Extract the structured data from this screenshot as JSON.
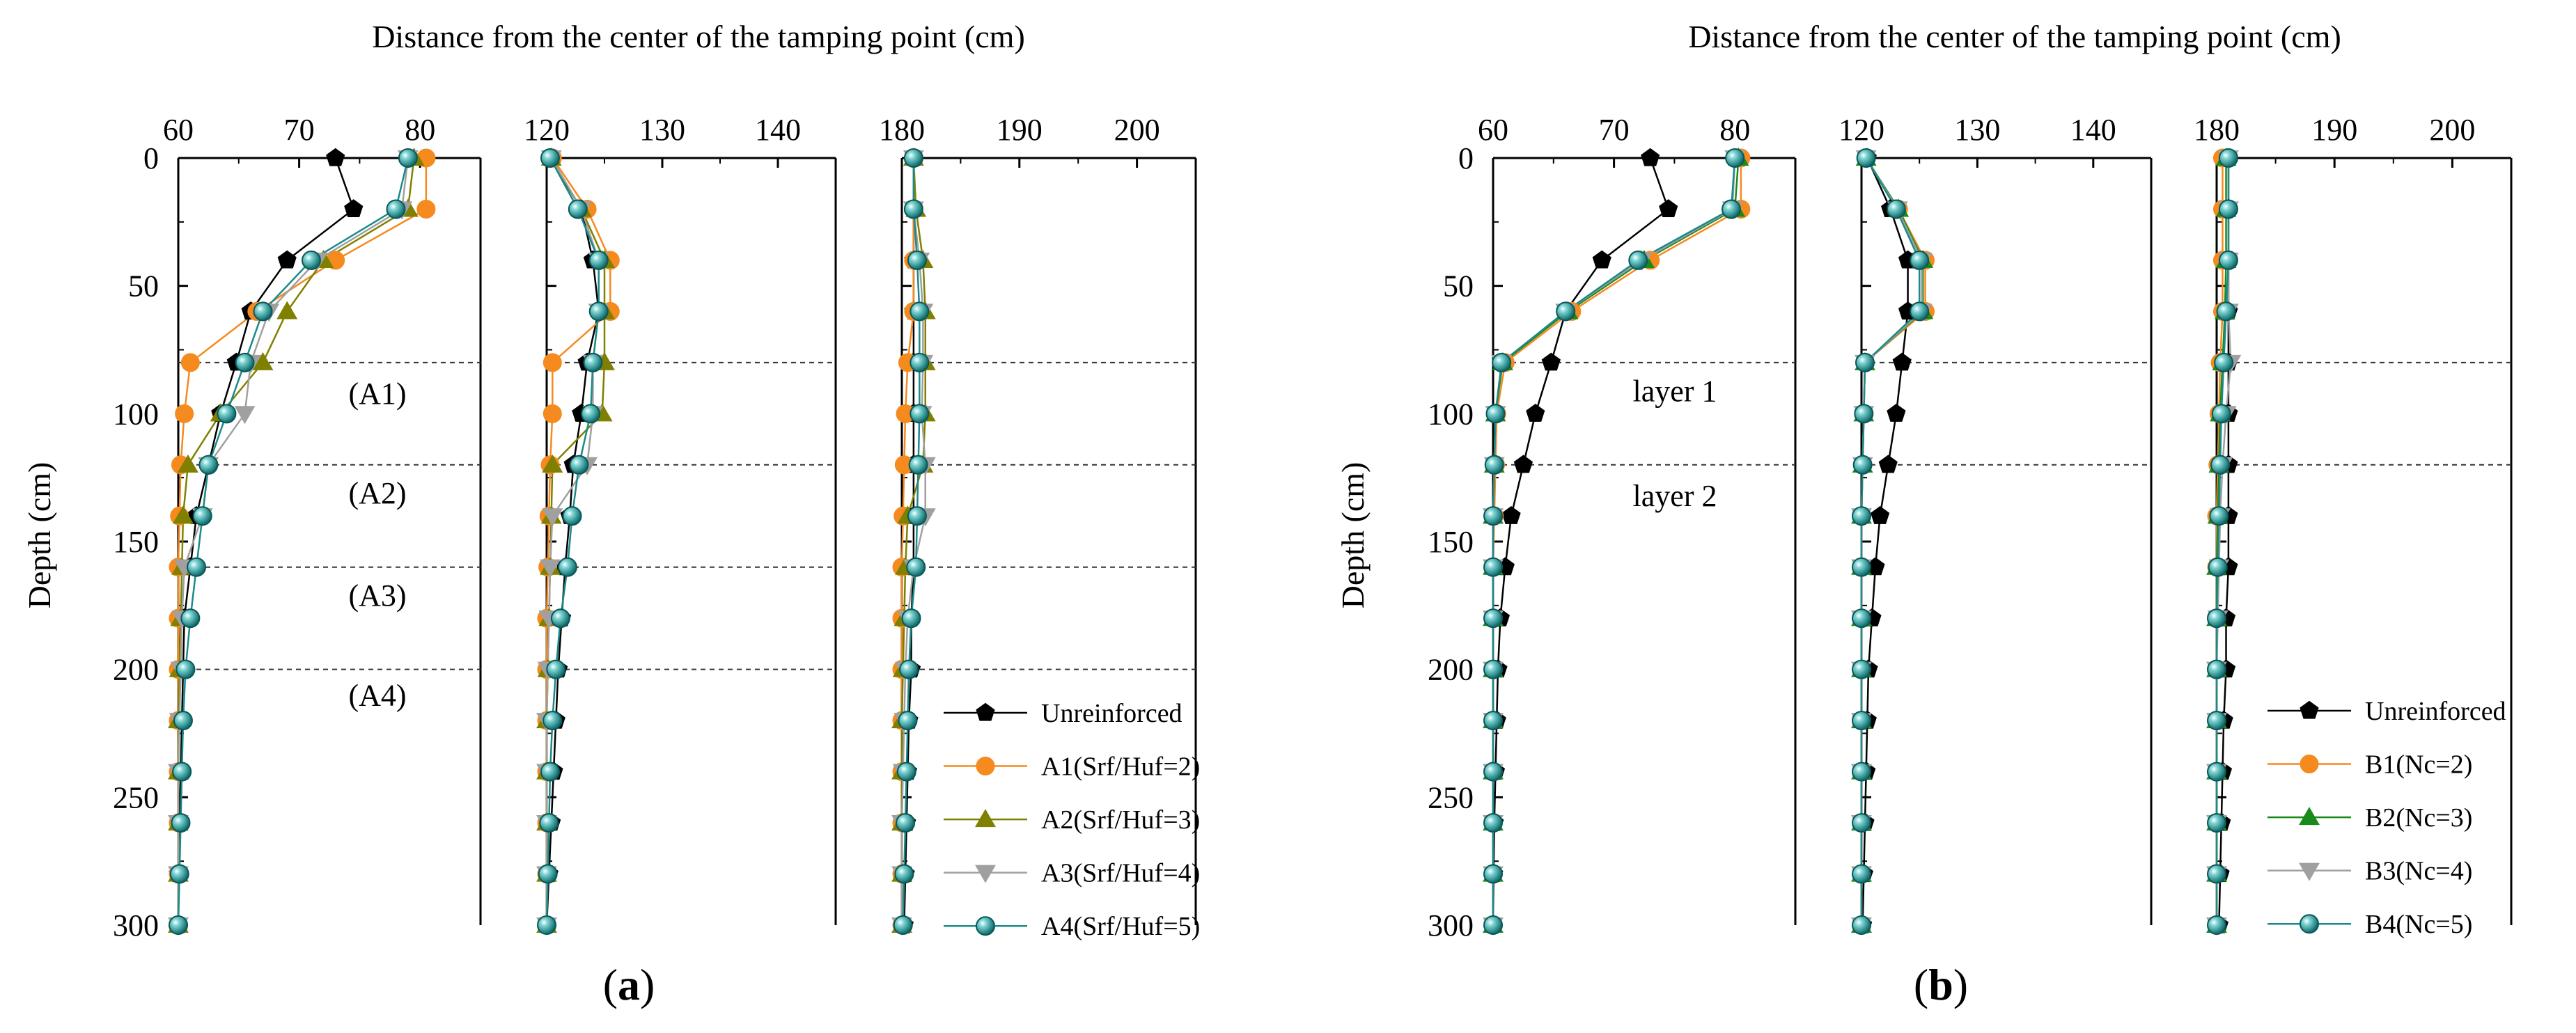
{
  "figure": {
    "panel_labels": [
      "(a)",
      "(b)"
    ],
    "panel_label_parts": [
      {
        "open": "(",
        "letter": "a",
        "close": ")"
      },
      {
        "open": "(",
        "letter": "b",
        "close": ")"
      }
    ]
  },
  "colors": {
    "unreinforced": "#000000",
    "s1": "#f58a1f",
    "s2_a": "#808000",
    "s2_b": "#1a8a1a",
    "s3": "#a0a0a0",
    "s4": "#1a8a8a",
    "axis": "#000000",
    "reference_line": "#333333"
  },
  "chart_data": [
    {
      "type": "line",
      "panel": "a",
      "title": "Distance from the center of the tamping point (cm)",
      "xlabel": "Distance from the center of the tamping point (cm)",
      "ylabel": "Depth (cm)",
      "ylim": [
        0,
        300
      ],
      "y_inverted": true,
      "y_ticks": [
        0,
        50,
        100,
        150,
        200,
        250,
        300
      ],
      "depths": [
        0,
        20,
        40,
        60,
        80,
        100,
        120,
        140,
        160,
        180,
        200,
        220,
        240,
        260,
        280,
        300
      ],
      "reference_depths": [
        80,
        120,
        160,
        200
      ],
      "layer_labels": [
        {
          "text": "(A1)",
          "depth": 92
        },
        {
          "text": "(A2)",
          "depth": 131
        },
        {
          "text": "(A3)",
          "depth": 171
        },
        {
          "text": "(A4)",
          "depth": 210
        }
      ],
      "legend_entries": [
        "Unreinforced",
        "A1(Srf/Huf=2)",
        "A2(Srf/Huf=3)",
        "A3(Srf/Huf=4)",
        "A4(Srf/Huf=5)"
      ],
      "sub_plots": [
        {
          "xlim": [
            60,
            85
          ],
          "x_ticks": [
            60,
            70,
            80
          ],
          "series": [
            {
              "name": "Unreinforced",
              "marker": "pentagon",
              "values": [
                73,
                74.5,
                69,
                66,
                64.8,
                63.5,
                62.5,
                61.5,
                61,
                60.5,
                60.4,
                60.3,
                60.2,
                60.1,
                60,
                60
              ]
            },
            {
              "name": "A1(Srf/Huf=2)",
              "marker": "circle",
              "values": [
                80.5,
                80.5,
                73,
                66.5,
                61,
                60.5,
                60.2,
                60.1,
                60,
                60,
                60,
                60,
                60,
                60,
                60,
                60
              ]
            },
            {
              "name": "A2(Srf/Huf=3)",
              "marker": "triangle-up",
              "values": [
                79.5,
                79,
                72,
                69,
                67,
                63.5,
                60.8,
                60.4,
                60.3,
                60.2,
                60.1,
                60,
                60,
                60,
                60,
                60
              ]
            },
            {
              "name": "A3(Srf/Huf=4)",
              "marker": "triangle-down",
              "values": [
                79,
                78.5,
                71.5,
                67.5,
                66,
                65.5,
                62.5,
                62,
                60.5,
                60.3,
                60.2,
                60.1,
                60,
                60,
                60,
                60
              ]
            },
            {
              "name": "A4(Srf/Huf=5)",
              "marker": "ball",
              "values": [
                79,
                78,
                71,
                67,
                65.5,
                64,
                62.5,
                62,
                61.5,
                61,
                60.6,
                60.4,
                60.3,
                60.2,
                60.1,
                60
              ]
            }
          ]
        },
        {
          "xlim": [
            120,
            145
          ],
          "x_ticks": [
            120,
            130,
            140
          ],
          "series": [
            {
              "name": "Unreinforced",
              "marker": "pentagon",
              "values": [
                120.3,
                123,
                124,
                124.5,
                123.5,
                123,
                122.3,
                122,
                121.6,
                121.3,
                121,
                120.8,
                120.6,
                120.4,
                120.2,
                120
              ]
            },
            {
              "name": "A1(Srf/Huf=2)",
              "marker": "circle",
              "values": [
                120.5,
                123.5,
                125.5,
                125.5,
                120.5,
                120.5,
                120.3,
                120.2,
                120.1,
                120,
                120,
                120,
                120,
                120,
                120,
                120
              ]
            },
            {
              "name": "A2(Srf/Huf=3)",
              "marker": "triangle-up",
              "values": [
                120.4,
                123,
                125,
                125,
                125,
                124.8,
                120.5,
                120.4,
                120.3,
                120.2,
                120.1,
                120,
                120,
                120,
                120,
                120
              ]
            },
            {
              "name": "A3(Srf/Huf=4)",
              "marker": "triangle-down",
              "values": [
                120.4,
                123,
                124.5,
                124.5,
                124,
                124,
                123.5,
                120.5,
                120.3,
                120.2,
                120.1,
                120,
                120,
                120,
                120,
                120
              ]
            },
            {
              "name": "A4(Srf/Huf=5)",
              "marker": "ball",
              "values": [
                120.3,
                122.7,
                124.5,
                124.5,
                124,
                123.8,
                122.8,
                122.2,
                121.8,
                121.2,
                120.8,
                120.5,
                120.3,
                120.2,
                120.1,
                120
              ]
            }
          ]
        },
        {
          "xlim": [
            180,
            205
          ],
          "x_ticks": [
            180,
            190,
            200
          ],
          "series": [
            {
              "name": "Unreinforced",
              "marker": "pentagon",
              "values": [
                181,
                181,
                181,
                181,
                181,
                181,
                181,
                181,
                181,
                180.8,
                180.8,
                180.6,
                180.5,
                180.4,
                180.3,
                180.2
              ]
            },
            {
              "name": "A1(Srf/Huf=2)",
              "marker": "circle",
              "values": [
                181,
                181,
                181,
                181,
                180.5,
                180.3,
                180.2,
                180.1,
                180,
                180,
                180,
                180,
                180,
                180,
                180,
                180
              ]
            },
            {
              "name": "A2(Srf/Huf=3)",
              "marker": "triangle-up",
              "values": [
                181,
                181.2,
                181.8,
                182,
                182,
                182,
                181.8,
                180.5,
                180.3,
                180.2,
                180.1,
                180,
                180,
                180,
                180,
                180
              ]
            },
            {
              "name": "A3(Srf/Huf=4)",
              "marker": "triangle-down",
              "values": [
                181,
                181,
                181.5,
                181.8,
                181.8,
                181.7,
                182,
                182,
                181,
                180.5,
                180.3,
                180.2,
                180.1,
                180,
                180,
                180
              ]
            },
            {
              "name": "A4(Srf/Huf=5)",
              "marker": "ball",
              "values": [
                181,
                181,
                181.3,
                181.5,
                181.5,
                181.5,
                181.4,
                181.3,
                181.2,
                180.8,
                180.6,
                180.5,
                180.4,
                180.3,
                180.2,
                180.1
              ]
            }
          ]
        }
      ]
    },
    {
      "type": "line",
      "panel": "b",
      "title": "Distance from the center of the tamping point (cm)",
      "xlabel": "Distance from the center of the tamping point (cm)",
      "ylabel": "Depth (cm)",
      "ylim": [
        0,
        300
      ],
      "y_inverted": true,
      "y_ticks": [
        0,
        50,
        100,
        150,
        200,
        250,
        300
      ],
      "depths": [
        0,
        20,
        40,
        60,
        80,
        100,
        120,
        140,
        160,
        180,
        200,
        220,
        240,
        260,
        280,
        300
      ],
      "reference_depths": [
        80,
        120
      ],
      "layer_labels": [
        {
          "text": "layer 1",
          "depth": 91
        },
        {
          "text": "layer 2",
          "depth": 132
        }
      ],
      "legend_entries": [
        "Unreinforced",
        "B1(Nc=2)",
        "B2(Nc=3)",
        "B3(Nc=4)",
        "B4(Nc=5)"
      ],
      "sub_plots": [
        {
          "xlim": [
            60,
            85
          ],
          "x_ticks": [
            60,
            70,
            80
          ],
          "series": [
            {
              "name": "Unreinforced",
              "marker": "pentagon",
              "values": [
                73,
                74.5,
                69,
                66,
                64.8,
                63.5,
                62.5,
                61.5,
                61,
                60.6,
                60.4,
                60.3,
                60.2,
                60.1,
                60.05,
                60
              ]
            },
            {
              "name": "B1(Nc=2)",
              "marker": "circle",
              "values": [
                80.5,
                80.5,
                73,
                66.5,
                61,
                60.3,
                60.2,
                60.1,
                60,
                60,
                60,
                60,
                60,
                60,
                60,
                60
              ]
            },
            {
              "name": "B2(Nc=3)",
              "marker": "triangle-up",
              "values": [
                80.3,
                80,
                72.5,
                66.2,
                60.8,
                60.2,
                60.1,
                60,
                60,
                60,
                60,
                60,
                60,
                60,
                60,
                60
              ]
            },
            {
              "name": "B3(Nc=4)",
              "marker": "triangle-down",
              "values": [
                80,
                79.8,
                72.3,
                66,
                60.7,
                60.2,
                60.1,
                60,
                60,
                60,
                60,
                60,
                60,
                60,
                60,
                60
              ]
            },
            {
              "name": "B4(Nc=5)",
              "marker": "ball",
              "values": [
                80,
                79.7,
                72,
                66,
                60.7,
                60.2,
                60.1,
                60,
                60,
                60,
                60,
                60,
                60,
                60,
                60,
                60
              ]
            }
          ]
        },
        {
          "xlim": [
            120,
            145
          ],
          "x_ticks": [
            120,
            130,
            140
          ],
          "series": [
            {
              "name": "Unreinforced",
              "marker": "pentagon",
              "values": [
                120.5,
                122.5,
                124,
                124,
                123.5,
                123,
                122.3,
                121.6,
                121.2,
                120.9,
                120.6,
                120.5,
                120.4,
                120.3,
                120.2,
                120.1
              ]
            },
            {
              "name": "B1(Nc=2)",
              "marker": "circle",
              "values": [
                120.4,
                123.2,
                125.5,
                125.5,
                120.3,
                120.2,
                120.1,
                120,
                120,
                120,
                120,
                120,
                120,
                120,
                120,
                120
              ]
            },
            {
              "name": "B2(Nc=3)",
              "marker": "triangle-up",
              "values": [
                120.4,
                123.2,
                125.3,
                125.3,
                120.3,
                120.2,
                120.1,
                120,
                120,
                120,
                120,
                120,
                120,
                120,
                120,
                120
              ]
            },
            {
              "name": "B3(Nc=4)",
              "marker": "triangle-down",
              "values": [
                120.4,
                123.1,
                125.2,
                125.2,
                120.3,
                120.2,
                120.1,
                120,
                120,
                120,
                120,
                120,
                120,
                120,
                120,
                120
              ]
            },
            {
              "name": "B4(Nc=5)",
              "marker": "ball",
              "values": [
                120.4,
                123,
                125,
                125,
                120.3,
                120.2,
                120.1,
                120,
                120,
                120,
                120,
                120,
                120,
                120,
                120,
                120
              ]
            }
          ]
        },
        {
          "xlim": [
            180,
            205
          ],
          "x_ticks": [
            180,
            190,
            200
          ],
          "series": [
            {
              "name": "Unreinforced",
              "marker": "pentagon",
              "values": [
                181,
                181,
                181,
                181,
                181,
                181,
                181,
                181,
                181,
                180.8,
                180.8,
                180.6,
                180.5,
                180.4,
                180.3,
                180.2
              ]
            },
            {
              "name": "B1(Nc=2)",
              "marker": "circle",
              "values": [
                180.5,
                180.5,
                180.5,
                180.5,
                180.3,
                180.2,
                180.1,
                180,
                180,
                180,
                180,
                180,
                180,
                180,
                180,
                180
              ]
            },
            {
              "name": "B2(Nc=3)",
              "marker": "triangle-up",
              "values": [
                180.8,
                180.8,
                180.8,
                180.7,
                180.5,
                180.3,
                180.2,
                180.1,
                180,
                180,
                180,
                180,
                180,
                180,
                180,
                180
              ]
            },
            {
              "name": "B3(Nc=4)",
              "marker": "triangle-down",
              "values": [
                181,
                181,
                181,
                181,
                181.2,
                180.8,
                180.5,
                180.3,
                180.2,
                180.1,
                180,
                180,
                180,
                180,
                180,
                180
              ]
            },
            {
              "name": "B4(Nc=5)",
              "marker": "ball",
              "values": [
                181,
                181,
                181,
                180.8,
                180.6,
                180.4,
                180.3,
                180.2,
                180.1,
                180,
                180,
                180,
                180,
                180,
                180,
                180
              ]
            }
          ]
        }
      ]
    }
  ]
}
